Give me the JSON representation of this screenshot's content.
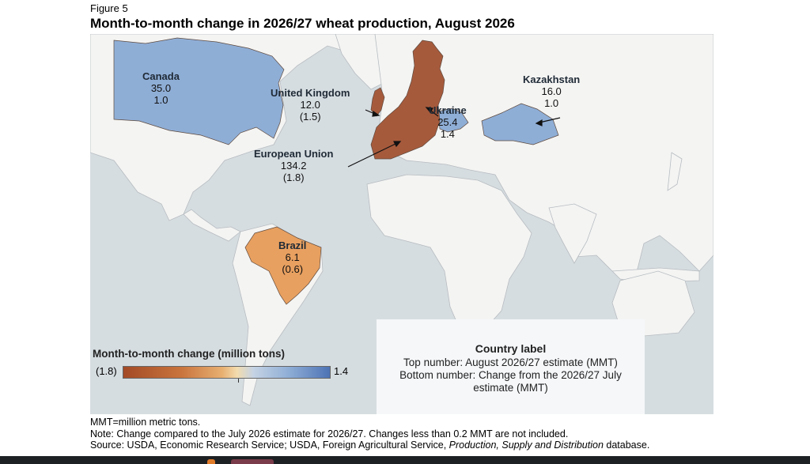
{
  "figure": {
    "label": "Figure 5",
    "title": "Month-to-month change in 2026/27 wheat production, August 2026"
  },
  "colors": {
    "ocean": "#d6dde1",
    "land": "#f4f4f3",
    "decrease_dark": "#a34a26",
    "decrease_light": "#e8a060",
    "increase": "#8faed6"
  },
  "countries": [
    {
      "key": "canada",
      "name": "Canada",
      "estimate": "35.0",
      "change": "1.0",
      "change_value": 1.0
    },
    {
      "key": "uk",
      "name": "United Kingdom",
      "estimate": "12.0",
      "change": "(1.5)",
      "change_value": -1.5
    },
    {
      "key": "eu",
      "name": "European Union",
      "estimate": "134.2",
      "change": "(1.8)",
      "change_value": -1.8
    },
    {
      "key": "ukraine",
      "name": "Ukraine",
      "estimate": "25.4",
      "change": "1.4",
      "change_value": 1.4
    },
    {
      "key": "kazakhstan",
      "name": "Kazakhstan",
      "estimate": "16.0",
      "change": "1.0",
      "change_value": 1.0
    },
    {
      "key": "brazil",
      "name": "Brazil",
      "estimate": "6.1",
      "change": "(0.6)",
      "change_value": -0.6
    }
  ],
  "legend": {
    "title": "Month-to-month change (million tons)",
    "min_label": "(1.8)",
    "max_label": "1.4",
    "min_value": -1.8,
    "max_value": 1.4
  },
  "key_box": {
    "title": "Country label",
    "line1": "Top number: August 2026/27 estimate (MMT)",
    "line2": "Bottom number: Change from the 2026/27 July",
    "line3": "estimate (MMT)"
  },
  "notes": {
    "abbrev": "MMT=million metric tons.",
    "note": "Note: Change compared to the July 2026 estimate for 2026/27. Changes less than 0.2 MMT are not included.",
    "source_prefix": "Source: USDA, Economic Research Service; USDA, Foreign Agricultural Service, ",
    "source_italic": "Production, Supply and Distribution",
    "source_suffix": " database."
  }
}
